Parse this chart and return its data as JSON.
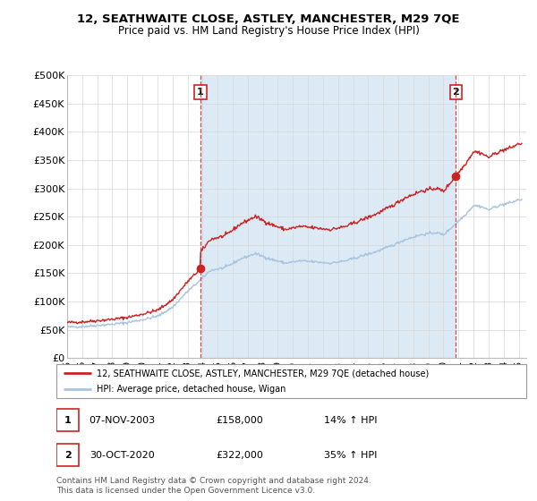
{
  "title": "12, SEATHWAITE CLOSE, ASTLEY, MANCHESTER, M29 7QE",
  "subtitle": "Price paid vs. HM Land Registry's House Price Index (HPI)",
  "ylim": [
    0,
    500000
  ],
  "yticks": [
    0,
    50000,
    100000,
    150000,
    200000,
    250000,
    300000,
    350000,
    400000,
    450000,
    500000
  ],
  "ytick_labels": [
    "£0",
    "£50K",
    "£100K",
    "£150K",
    "£200K",
    "£250K",
    "£300K",
    "£350K",
    "£400K",
    "£450K",
    "£500K"
  ],
  "xlim_start": 1995.0,
  "xlim_end": 2025.5,
  "hpi_color": "#a8c4e0",
  "hpi_fill_color": "#dceaf5",
  "price_color": "#cc2222",
  "transaction1_x": 2003.856,
  "transaction1_y": 158000,
  "transaction2_x": 2020.832,
  "transaction2_y": 322000,
  "legend_line1": "12, SEATHWAITE CLOSE, ASTLEY, MANCHESTER, M29 7QE (detached house)",
  "legend_line2": "HPI: Average price, detached house, Wigan",
  "annotation1_date": "07-NOV-2003",
  "annotation1_price": "£158,000",
  "annotation1_hpi": "14% ↑ HPI",
  "annotation2_date": "30-OCT-2020",
  "annotation2_price": "£322,000",
  "annotation2_hpi": "35% ↑ HPI",
  "footer": "Contains HM Land Registry data © Crown copyright and database right 2024.\nThis data is licensed under the Open Government Licence v3.0."
}
